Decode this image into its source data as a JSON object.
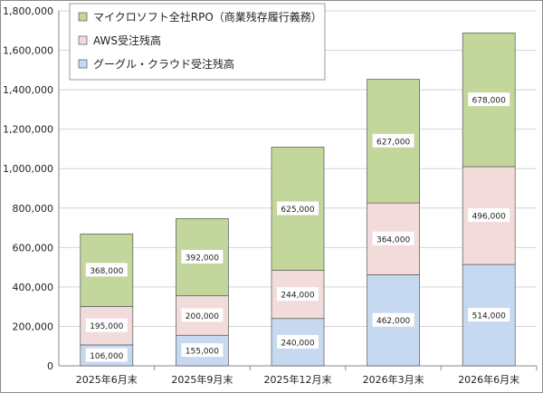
{
  "chart_data": {
    "type": "bar",
    "stacked": true,
    "categories": [
      "2025年6月末",
      "2025年9月末",
      "2025年12月末",
      "2026年3月末",
      "2026年6月末"
    ],
    "series": [
      {
        "name": "グーグル・クラウド受注残高",
        "values": [
          106000,
          155000,
          240000,
          462000,
          514000
        ],
        "color": "#c6d9f1",
        "labels": [
          "106,000",
          "155,000",
          "240,000",
          "462,000",
          "514,000"
        ]
      },
      {
        "name": "AWS受注残高",
        "values": [
          195000,
          200000,
          244000,
          364000,
          496000
        ],
        "color": "#f2dcdb",
        "labels": [
          "195,000",
          "200,000",
          "244,000",
          "364,000",
          "496,000"
        ]
      },
      {
        "name": "マイクロソフト全社RPO（商業残存履行義務）",
        "values": [
          368000,
          392000,
          625000,
          627000,
          678000
        ],
        "color": "#c3d69b",
        "labels": [
          "368,000",
          "392,000",
          "625,000",
          "627,000",
          "678,000"
        ]
      }
    ],
    "ylim": [
      0,
      1800000
    ],
    "yticks": [
      0,
      200000,
      400000,
      600000,
      800000,
      1000000,
      1200000,
      1400000,
      1600000,
      1800000
    ],
    "ytick_labels": [
      "0",
      "200,000",
      "400,000",
      "600,000",
      "800,000",
      "1,000,000",
      "1,200,000",
      "1,400,000",
      "1,600,000",
      "1,800,000"
    ],
    "grid": true,
    "legend_position": "top-left",
    "title": "",
    "xlabel": "",
    "ylabel": ""
  }
}
